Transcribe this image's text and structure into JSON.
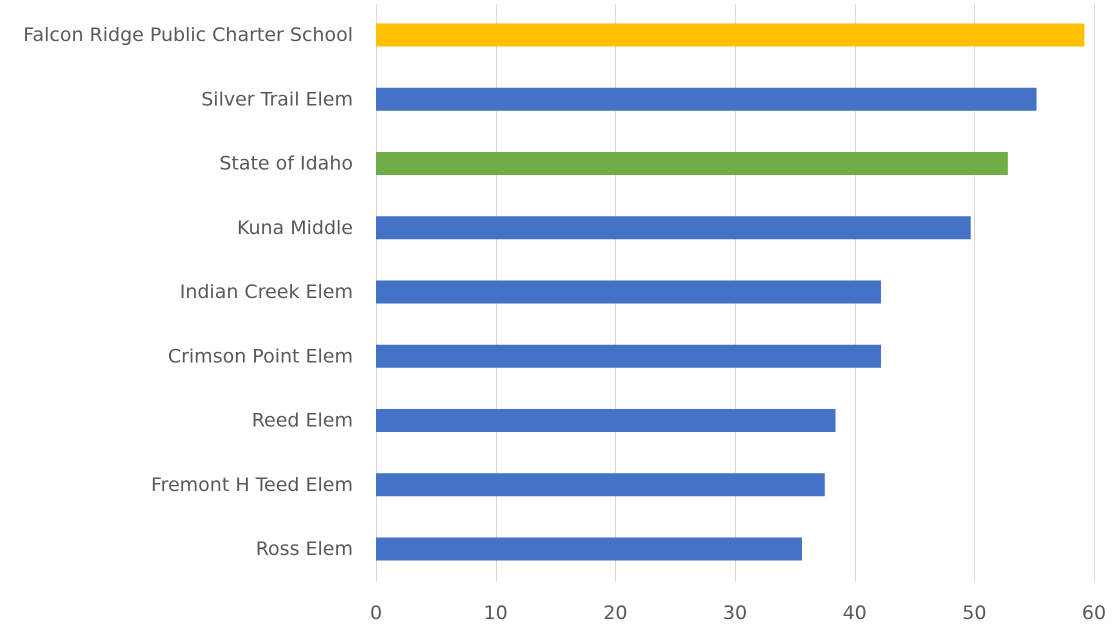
{
  "chart_data": {
    "type": "bar",
    "orientation": "horizontal",
    "title": "",
    "xlabel": "",
    "ylabel": "",
    "xlim": [
      0,
      60
    ],
    "x_ticks": [
      "0",
      "10",
      "20",
      "30",
      "40",
      "50",
      "60"
    ],
    "grid": "vertical",
    "legend": "none",
    "categories": [
      "Falcon Ridge Public Charter School",
      "Silver Trail Elem",
      "State of Idaho",
      "Kuna Middle",
      "Indian Creek Elem",
      "Crimson Point Elem",
      "Reed Elem",
      "Fremont H Teed Elem",
      "Ross Elem"
    ],
    "values": [
      59.2,
      55.2,
      52.8,
      49.7,
      42.2,
      42.2,
      38.4,
      37.5,
      35.6
    ],
    "colors": [
      "#ffc000",
      "#4472c4",
      "#70ad47",
      "#4472c4",
      "#4472c4",
      "#4472c4",
      "#4472c4",
      "#4472c4",
      "#4472c4"
    ]
  }
}
